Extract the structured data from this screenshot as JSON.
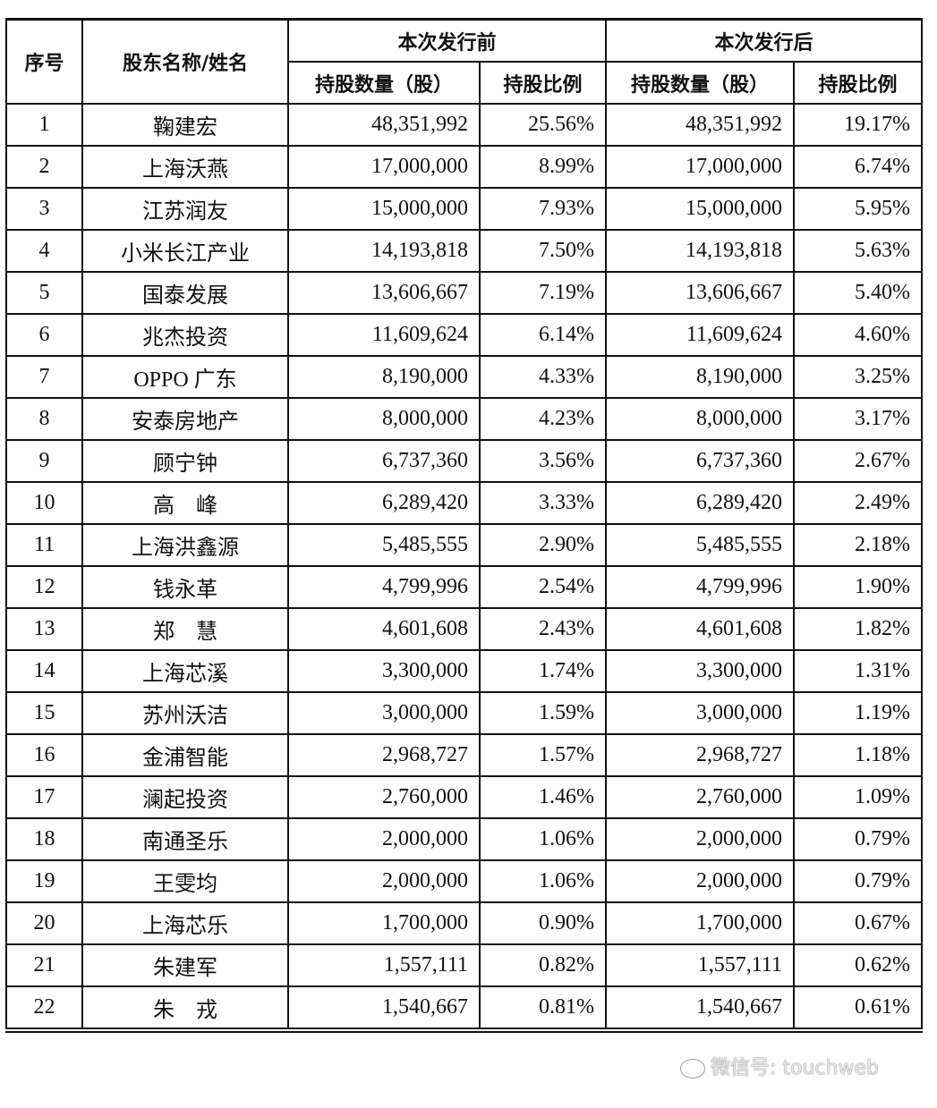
{
  "header": {
    "no": "序号",
    "name": "股东名称/姓名",
    "before": "本次发行前",
    "after": "本次发行后",
    "shares": "持股数量（股）",
    "ratio": "持股比例"
  },
  "rows": [
    [
      "1",
      "鞠建宏",
      "48,351,992",
      "25.56%",
      "48,351,992",
      "19.17%"
    ],
    [
      "2",
      "上海沃燕",
      "17,000,000",
      "8.99%",
      "17,000,000",
      "6.74%"
    ],
    [
      "3",
      "江苏润友",
      "15,000,000",
      "7.93%",
      "15,000,000",
      "5.95%"
    ],
    [
      "4",
      "小米长江产业",
      "14,193,818",
      "7.50%",
      "14,193,818",
      "5.63%"
    ],
    [
      "5",
      "国泰发展",
      "13,606,667",
      "7.19%",
      "13,606,667",
      "5.40%"
    ],
    [
      "6",
      "兆杰投资",
      "11,609,624",
      "6.14%",
      "11,609,624",
      "4.60%"
    ],
    [
      "7",
      "OPPO 广东",
      "8,190,000",
      "4.33%",
      "8,190,000",
      "3.25%"
    ],
    [
      "8",
      "安泰房地产",
      "8,000,000",
      "4.23%",
      "8,000,000",
      "3.17%"
    ],
    [
      "9",
      "顾宁钟",
      "6,737,360",
      "3.56%",
      "6,737,360",
      "2.67%"
    ],
    [
      "10",
      "高　峰",
      "6,289,420",
      "3.33%",
      "6,289,420",
      "2.49%"
    ],
    [
      "11",
      "上海洪鑫源",
      "5,485,555",
      "2.90%",
      "5,485,555",
      "2.18%"
    ],
    [
      "12",
      "钱永革",
      "4,799,996",
      "2.54%",
      "4,799,996",
      "1.90%"
    ],
    [
      "13",
      "郑　慧",
      "4,601,608",
      "2.43%",
      "4,601,608",
      "1.82%"
    ],
    [
      "14",
      "上海芯溪",
      "3,300,000",
      "1.74%",
      "3,300,000",
      "1.31%"
    ],
    [
      "15",
      "苏州沃洁",
      "3,000,000",
      "1.59%",
      "3,000,000",
      "1.19%"
    ],
    [
      "16",
      "金浦智能",
      "2,968,727",
      "1.57%",
      "2,968,727",
      "1.18%"
    ],
    [
      "17",
      "澜起投资",
      "2,760,000",
      "1.46%",
      "2,760,000",
      "1.09%"
    ],
    [
      "18",
      "南通圣乐",
      "2,000,000",
      "1.06%",
      "2,000,000",
      "0.79%"
    ],
    [
      "19",
      "王雯均",
      "2,000,000",
      "1.06%",
      "2,000,000",
      "0.79%"
    ],
    [
      "20",
      "上海芯乐",
      "1,700,000",
      "0.90%",
      "1,700,000",
      "0.67%"
    ],
    [
      "21",
      "朱建军",
      "1,557,111",
      "0.82%",
      "1,557,111",
      "0.62%"
    ],
    [
      "22",
      "朱　戎",
      "1,540,667",
      "0.81%",
      "1,540,667",
      "0.61%"
    ]
  ],
  "watermark": "微信号: touchweb"
}
